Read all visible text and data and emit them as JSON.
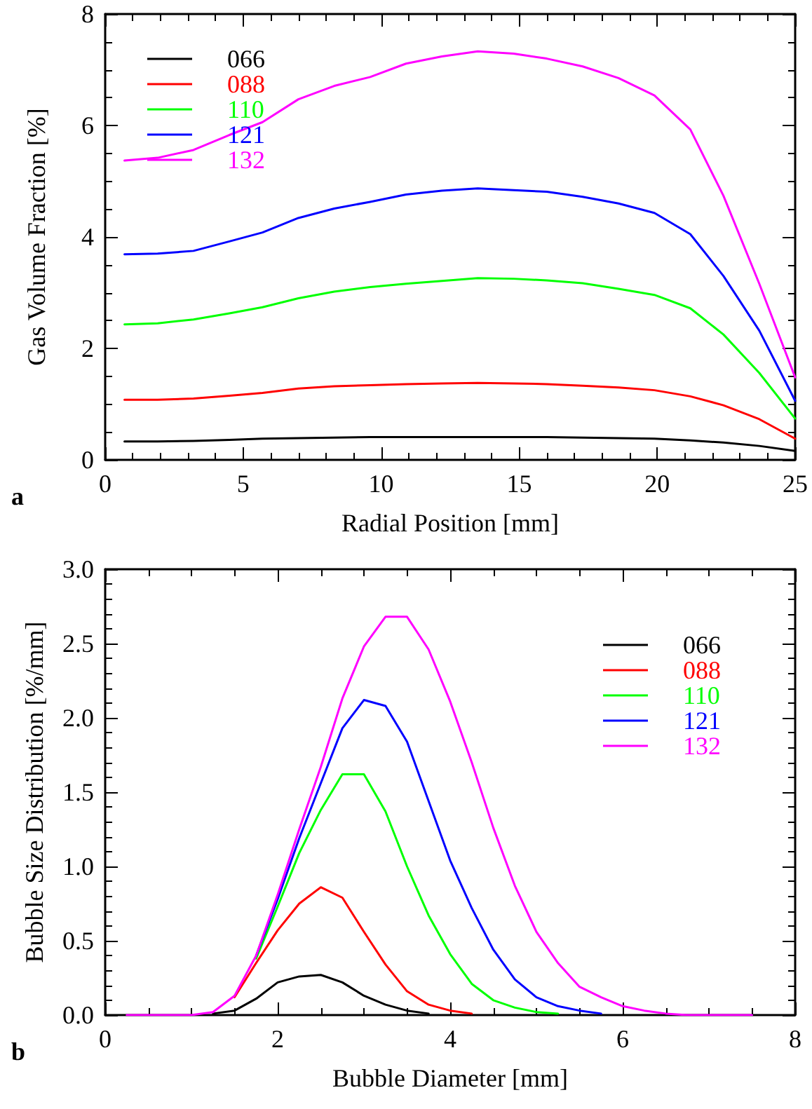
{
  "chart_data": [
    {
      "type": "line",
      "xlabel": "Radial Position [mm]",
      "ylabel": "Gas Volume Fraction [%]",
      "annotations": [
        "a"
      ],
      "legend": "top left",
      "grid": false,
      "marker": "none",
      "line_style": "solid",
      "x": [
        0.7,
        1.9,
        3.2,
        4.5,
        5.7,
        7.0,
        8.3,
        9.6,
        10.9,
        12.2,
        13.5,
        14.8,
        16.0,
        17.3,
        18.6,
        19.9,
        21.2,
        22.4,
        23.7,
        25.0
      ],
      "xlim": [
        0,
        25
      ],
      "xticks": [
        0,
        5,
        10,
        15,
        20,
        25
      ],
      "ylim": [
        0,
        8
      ],
      "yticks": [
        0,
        2,
        4,
        6,
        8
      ],
      "series": [
        {
          "name": "066",
          "color": "#000000",
          "values": [
            0.33,
            0.33,
            0.34,
            0.36,
            0.38,
            0.39,
            0.4,
            0.41,
            0.41,
            0.41,
            0.41,
            0.41,
            0.41,
            0.4,
            0.39,
            0.38,
            0.35,
            0.31,
            0.25,
            0.16
          ]
        },
        {
          "name": "088",
          "color": "#ff0000",
          "values": [
            1.08,
            1.08,
            1.1,
            1.15,
            1.2,
            1.28,
            1.32,
            1.34,
            1.36,
            1.37,
            1.38,
            1.37,
            1.36,
            1.33,
            1.3,
            1.25,
            1.14,
            0.98,
            0.73,
            0.38
          ]
        },
        {
          "name": "110",
          "color": "#00ff00",
          "values": [
            2.43,
            2.45,
            2.52,
            2.63,
            2.74,
            2.9,
            3.02,
            3.1,
            3.16,
            3.21,
            3.26,
            3.25,
            3.22,
            3.17,
            3.07,
            2.96,
            2.72,
            2.25,
            1.56,
            0.74
          ]
        },
        {
          "name": "121",
          "color": "#0000ff",
          "values": [
            3.69,
            3.7,
            3.75,
            3.92,
            4.08,
            4.34,
            4.51,
            4.63,
            4.76,
            4.83,
            4.87,
            4.84,
            4.81,
            4.72,
            4.6,
            4.43,
            4.05,
            3.3,
            2.32,
            1.06
          ]
        },
        {
          "name": "132",
          "color": "#ff00ff",
          "values": [
            5.37,
            5.42,
            5.56,
            5.83,
            6.06,
            6.47,
            6.71,
            6.87,
            7.11,
            7.24,
            7.33,
            7.29,
            7.2,
            7.06,
            6.85,
            6.54,
            5.93,
            4.74,
            3.16,
            1.48
          ]
        }
      ]
    },
    {
      "type": "line",
      "xlabel": "Bubble Diameter [mm]",
      "ylabel": "Bubble Size Distribution [%/mm]",
      "annotations": [
        "b"
      ],
      "legend": "top right",
      "grid": false,
      "marker": "none",
      "line_style": "solid",
      "x": [
        0.25,
        0.5,
        0.75,
        1.0,
        1.25,
        1.5,
        1.75,
        2.0,
        2.25,
        2.5,
        2.75,
        3.0,
        3.25,
        3.5,
        3.75,
        4.0,
        4.25,
        4.5,
        4.75,
        5.0,
        5.25,
        5.5,
        5.75,
        6.0,
        6.25,
        6.5,
        6.75,
        7.0,
        7.25,
        7.5
      ],
      "xlim": [
        0,
        8
      ],
      "xticks": [
        0,
        2,
        4,
        6,
        8
      ],
      "ylim": [
        0,
        3
      ],
      "yticks": [
        {
          "value": 0,
          "label": "0.0"
        },
        {
          "value": 0.5,
          "label": "0.5"
        },
        {
          "value": 1,
          "label": "1.0"
        },
        {
          "value": 1.5,
          "label": "1.5"
        },
        {
          "value": 2,
          "label": "2.0"
        },
        {
          "value": 2.5,
          "label": "2.5"
        },
        {
          "value": 3,
          "label": "3.0"
        }
      ],
      "series": [
        {
          "name": "066",
          "color": "#000000",
          "values": [
            null,
            null,
            null,
            null,
            0.01,
            0.03,
            0.11,
            0.22,
            0.26,
            0.27,
            0.22,
            0.13,
            0.07,
            0.03,
            0.01,
            null,
            null,
            null,
            null,
            null,
            null,
            null,
            null,
            null,
            null,
            null,
            null,
            null,
            null,
            null
          ]
        },
        {
          "name": "088",
          "color": "#ff0000",
          "values": [
            null,
            null,
            null,
            null,
            null,
            0.12,
            0.35,
            0.57,
            0.75,
            0.86,
            0.79,
            0.56,
            0.34,
            0.16,
            0.07,
            0.03,
            0.01,
            null,
            null,
            null,
            null,
            null,
            null,
            null,
            null,
            null,
            null,
            null,
            null,
            null
          ]
        },
        {
          "name": "110",
          "color": "#00ff00",
          "values": [
            null,
            null,
            null,
            null,
            null,
            null,
            0.38,
            0.73,
            1.09,
            1.38,
            1.62,
            1.62,
            1.37,
            1.0,
            0.67,
            0.41,
            0.21,
            0.1,
            0.05,
            0.02,
            0.01,
            null,
            null,
            null,
            null,
            null,
            null,
            null,
            null,
            null
          ]
        },
        {
          "name": "121",
          "color": "#0000ff",
          "values": [
            null,
            null,
            null,
            null,
            null,
            null,
            0.4,
            0.78,
            1.19,
            1.56,
            1.93,
            2.12,
            2.08,
            1.84,
            1.44,
            1.04,
            0.72,
            0.44,
            0.24,
            0.12,
            0.06,
            0.03,
            0.01,
            null,
            null,
            null,
            null,
            null,
            null,
            null
          ]
        },
        {
          "name": "132",
          "color": "#ff00ff",
          "values": [
            0,
            0,
            0,
            0,
            0.02,
            0.13,
            0.4,
            0.81,
            1.25,
            1.67,
            2.13,
            2.48,
            2.68,
            2.68,
            2.46,
            2.11,
            1.7,
            1.26,
            0.87,
            0.56,
            0.35,
            0.19,
            0.12,
            0.06,
            0.03,
            0.01,
            0,
            0,
            0,
            0
          ]
        }
      ]
    }
  ]
}
